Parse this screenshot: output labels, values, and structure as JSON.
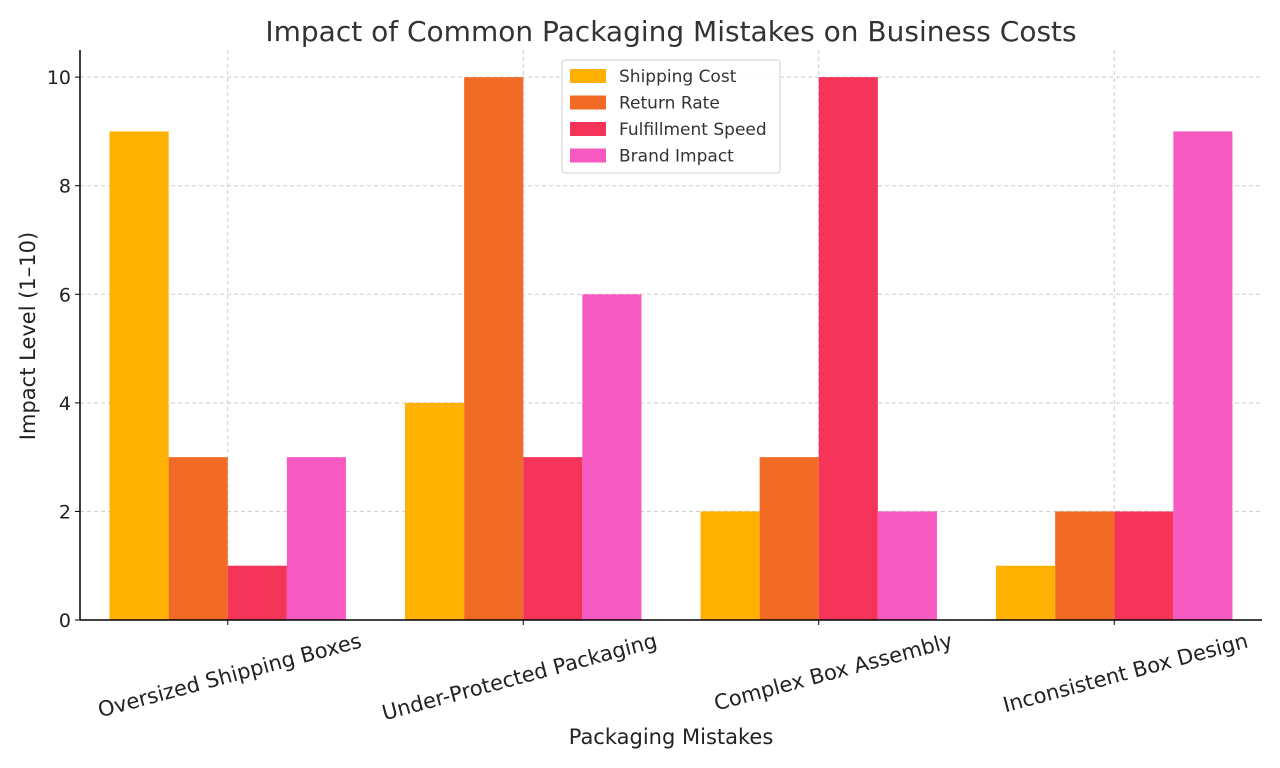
{
  "chart_data": {
    "type": "bar",
    "title": "Impact of Common Packaging Mistakes on Business Costs",
    "xlabel": "Packaging Mistakes",
    "ylabel": "Impact Level (1–10)",
    "categories": [
      "Oversized Shipping Boxes",
      "Under-Protected Packaging",
      "Complex Box Assembly",
      "Inconsistent Box Design"
    ],
    "series": [
      {
        "name": "Shipping Cost",
        "values": [
          9,
          4,
          2,
          1
        ],
        "color": "#FFB000"
      },
      {
        "name": "Return Rate",
        "values": [
          3,
          10,
          3,
          2
        ],
        "color": "#F26B25"
      },
      {
        "name": "Fulfillment Speed",
        "values": [
          1,
          3,
          10,
          2
        ],
        "color": "#F43459"
      },
      {
        "name": "Brand Impact",
        "values": [
          3,
          6,
          2,
          9
        ],
        "color": "#F75BC1"
      }
    ],
    "ylim": [
      0,
      10.5
    ],
    "yticks": [
      0,
      2,
      4,
      6,
      8,
      10
    ],
    "grid": true,
    "legend_position": "top-center"
  }
}
